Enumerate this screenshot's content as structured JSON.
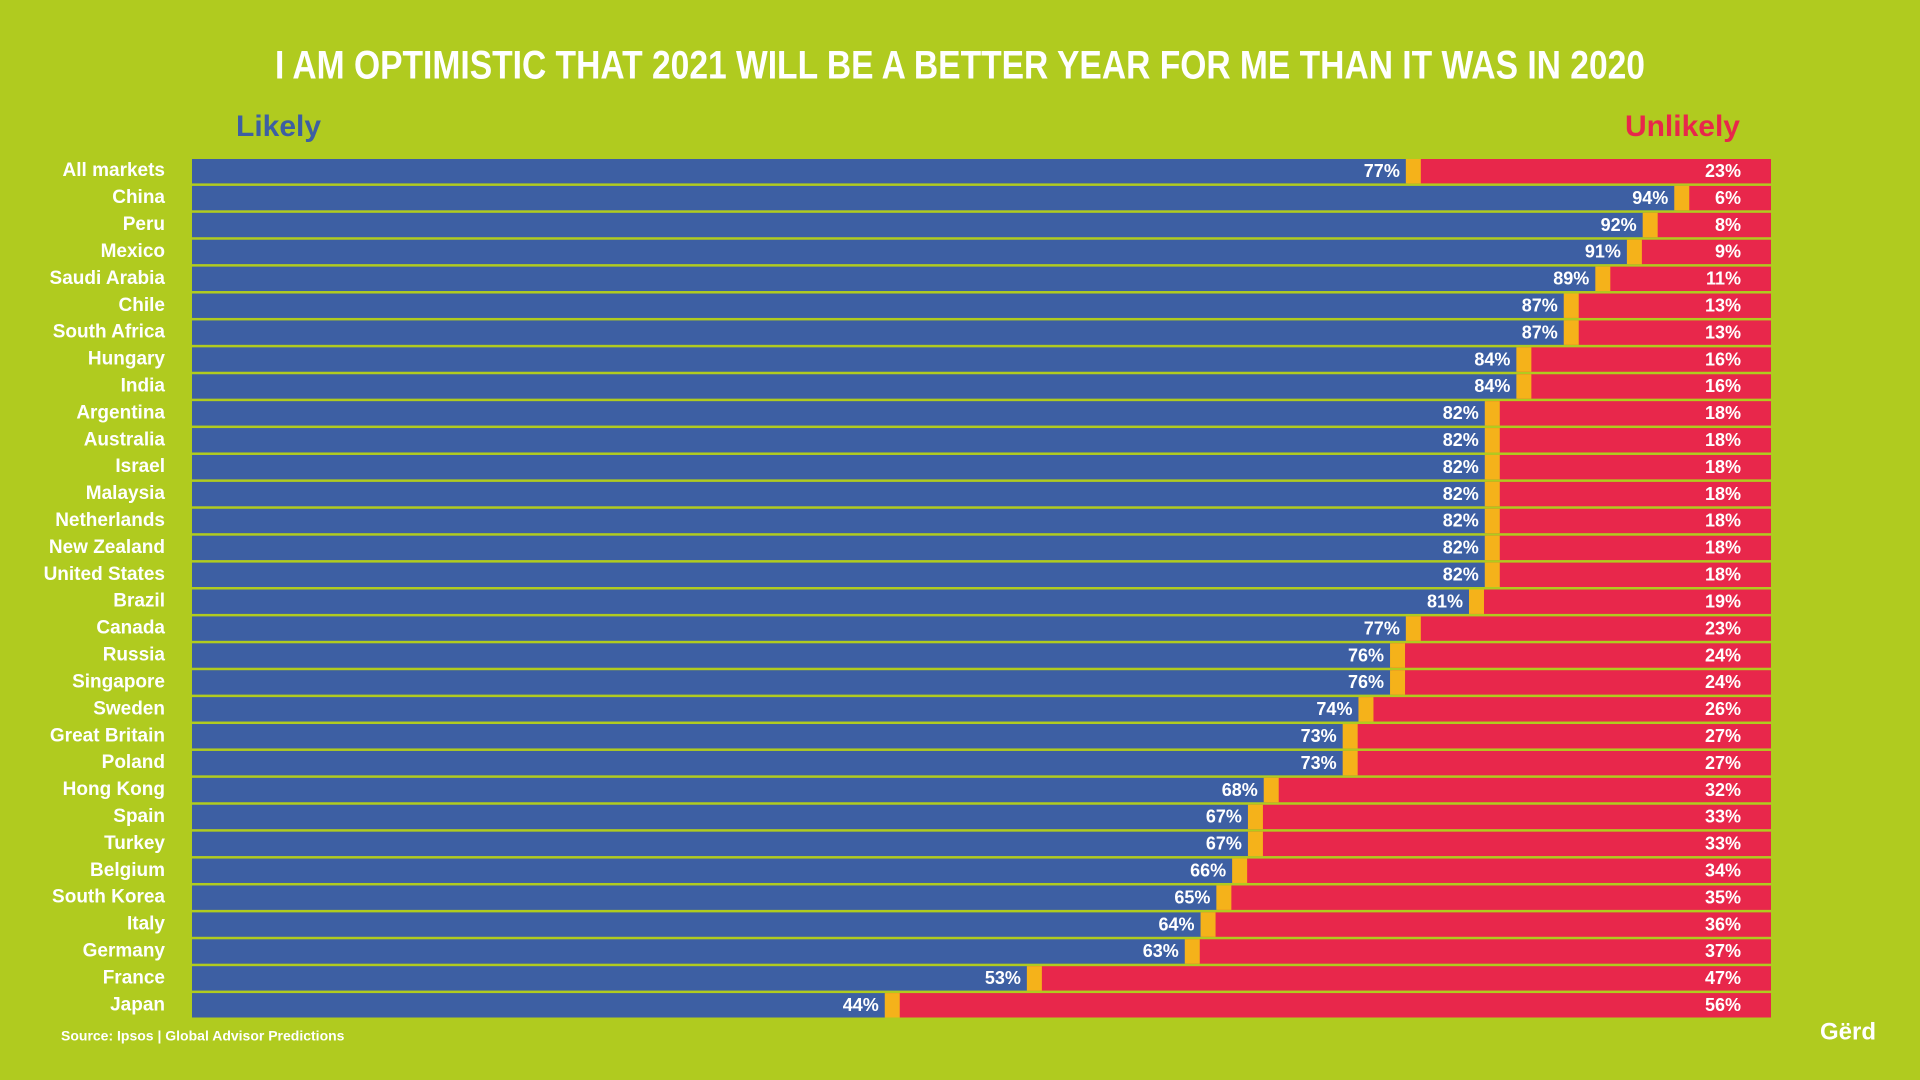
{
  "chart_data": {
    "type": "stacked-bar-horizontal",
    "title": "I AM OPTIMISTIC THAT 2021 WILL BE A BETTER YEAR FOR ME THAN IT WAS IN 2020",
    "source": "Source: Ipsos | Global Advisor Predictions",
    "logo": "Gërd",
    "xlim": [
      0,
      100
    ],
    "categories": [
      "All markets",
      "China",
      "Peru",
      "Mexico",
      "Saudi Arabia",
      "Chile",
      "South Africa",
      "Hungary",
      "India",
      "Argentina",
      "Australia",
      "Israel",
      "Malaysia",
      "Netherlands",
      "New Zealand",
      "United States",
      "Brazil",
      "Canada",
      "Russia",
      "Singapore",
      "Sweden",
      "Great Britain",
      "Poland",
      "Hong Kong",
      "Spain",
      "Turkey",
      "Belgium",
      "South Korea",
      "Italy",
      "Germany",
      "France",
      "Japan"
    ],
    "series": [
      {
        "name": "Likely",
        "color": "#3d5fa3",
        "values": [
          77,
          94,
          92,
          91,
          89,
          87,
          87,
          84,
          84,
          82,
          82,
          82,
          82,
          82,
          82,
          82,
          81,
          77,
          76,
          76,
          74,
          73,
          73,
          68,
          67,
          67,
          66,
          65,
          64,
          63,
          53,
          44
        ],
        "value_labels": [
          "77%",
          "94%",
          "92%",
          "91%",
          "89%",
          "87%",
          "87%",
          "84%",
          "84%",
          "82%",
          "82%",
          "82%",
          "82%",
          "82%",
          "82%",
          "82%",
          "81%",
          "77%",
          "76%",
          "76%",
          "74%",
          "73%",
          "73%",
          "68%",
          "67%",
          "67%",
          "66%",
          "65%",
          "64%",
          "63%",
          "53%",
          "44%"
        ]
      },
      {
        "name": "Unlikely",
        "color": "#e8274b",
        "values": [
          23,
          6,
          8,
          9,
          11,
          13,
          13,
          16,
          16,
          18,
          18,
          18,
          18,
          18,
          18,
          18,
          19,
          23,
          24,
          24,
          26,
          27,
          27,
          32,
          33,
          33,
          34,
          35,
          36,
          37,
          47,
          56
        ],
        "value_labels": [
          "23%",
          "6%",
          "8%",
          "9%",
          "11%",
          "13%",
          "13%",
          "16%",
          "16%",
          "18%",
          "18%",
          "18%",
          "18%",
          "18%",
          "18%",
          "18%",
          "19%",
          "23%",
          "24%",
          "24%",
          "26%",
          "27%",
          "27%",
          "32%",
          "33%",
          "33%",
          "34%",
          "35%",
          "36%",
          "37%",
          "47%",
          "56%"
        ]
      }
    ],
    "separator_color": "#f5b21a"
  }
}
